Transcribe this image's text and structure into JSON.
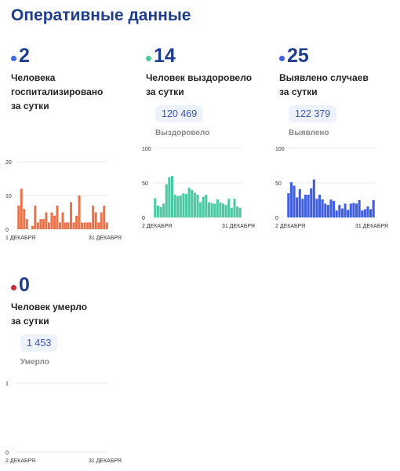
{
  "page": {
    "title": "Оперативные данные"
  },
  "cards": [
    {
      "id": "hospitalized",
      "value": "2",
      "label": "Человека\nгоспитализировано\nза сутки",
      "color": "#4169e1"
    },
    {
      "id": "recovered",
      "value": "14",
      "label": "Человек выздоровело\nза сутки",
      "total": "120 469",
      "total_label": "Выздоровело",
      "color": "#4cc9a4"
    },
    {
      "id": "cases",
      "value": "25",
      "label": "Выявлено случаев\nза сутки",
      "total": "122 379",
      "total_label": "Выявлено",
      "color": "#3f5ee0"
    },
    {
      "id": "deaths",
      "value": "0",
      "label": "Человек умерло\nза сутки",
      "total": "1 453",
      "total_label": "Умерло",
      "color": "#c0303a"
    }
  ],
  "chart_data": [
    {
      "id": "hospitalized-chart",
      "type": "bar",
      "color": "#e8734a",
      "ylim": [
        0,
        20
      ],
      "yticks": [
        0,
        10,
        20
      ],
      "xtick_labels": [
        "1 ДЕКАБРЯ",
        "31 ДЕКАБРЯ"
      ],
      "values": [
        7,
        12,
        6,
        3,
        0,
        1,
        7,
        2,
        3,
        3,
        5,
        2,
        5,
        4,
        7,
        2,
        5,
        2,
        2,
        8,
        2,
        4,
        10,
        2,
        2,
        2,
        2,
        7,
        5,
        2,
        5,
        7,
        2
      ]
    },
    {
      "id": "recovered-chart",
      "type": "bar",
      "color": "#4cc9a4",
      "ylim": [
        0,
        100
      ],
      "yticks": [
        0,
        50,
        100
      ],
      "xtick_labels": [
        "2 ДЕКАБРЯ",
        "31 ДЕКАБРЯ"
      ],
      "values": [
        28,
        17,
        15,
        20,
        48,
        58,
        60,
        33,
        31,
        32,
        35,
        34,
        43,
        40,
        36,
        33,
        22,
        30,
        33,
        22,
        21,
        20,
        26,
        22,
        20,
        18,
        27,
        14,
        27,
        16,
        14
      ]
    },
    {
      "id": "cases-chart",
      "type": "bar",
      "color": "#3f5ee0",
      "ylim": [
        0,
        100
      ],
      "yticks": [
        0,
        50,
        100
      ],
      "xtick_labels": [
        "2 ДЕКАБРЯ",
        "31 ДЕКАБРЯ"
      ],
      "values": [
        35,
        51,
        46,
        29,
        41,
        27,
        33,
        33,
        42,
        55,
        27,
        33,
        26,
        20,
        18,
        26,
        24,
        10,
        18,
        13,
        20,
        11,
        20,
        21,
        20,
        25,
        10,
        12,
        16,
        12,
        25
      ]
    },
    {
      "id": "deaths-chart",
      "type": "bar",
      "color": "#c0303a",
      "ylim": [
        0,
        1
      ],
      "yticks": [
        0,
        1
      ],
      "xtick_labels": [
        "2 ДЕКАБРЯ",
        "31 ДЕКАБРЯ"
      ],
      "values": [
        0,
        0,
        0,
        0,
        0,
        0,
        0,
        0,
        0,
        0,
        0,
        0,
        0,
        0,
        0,
        0,
        0,
        0,
        0,
        0,
        0,
        0,
        0,
        0,
        0,
        0,
        0,
        0,
        0,
        0
      ]
    }
  ]
}
